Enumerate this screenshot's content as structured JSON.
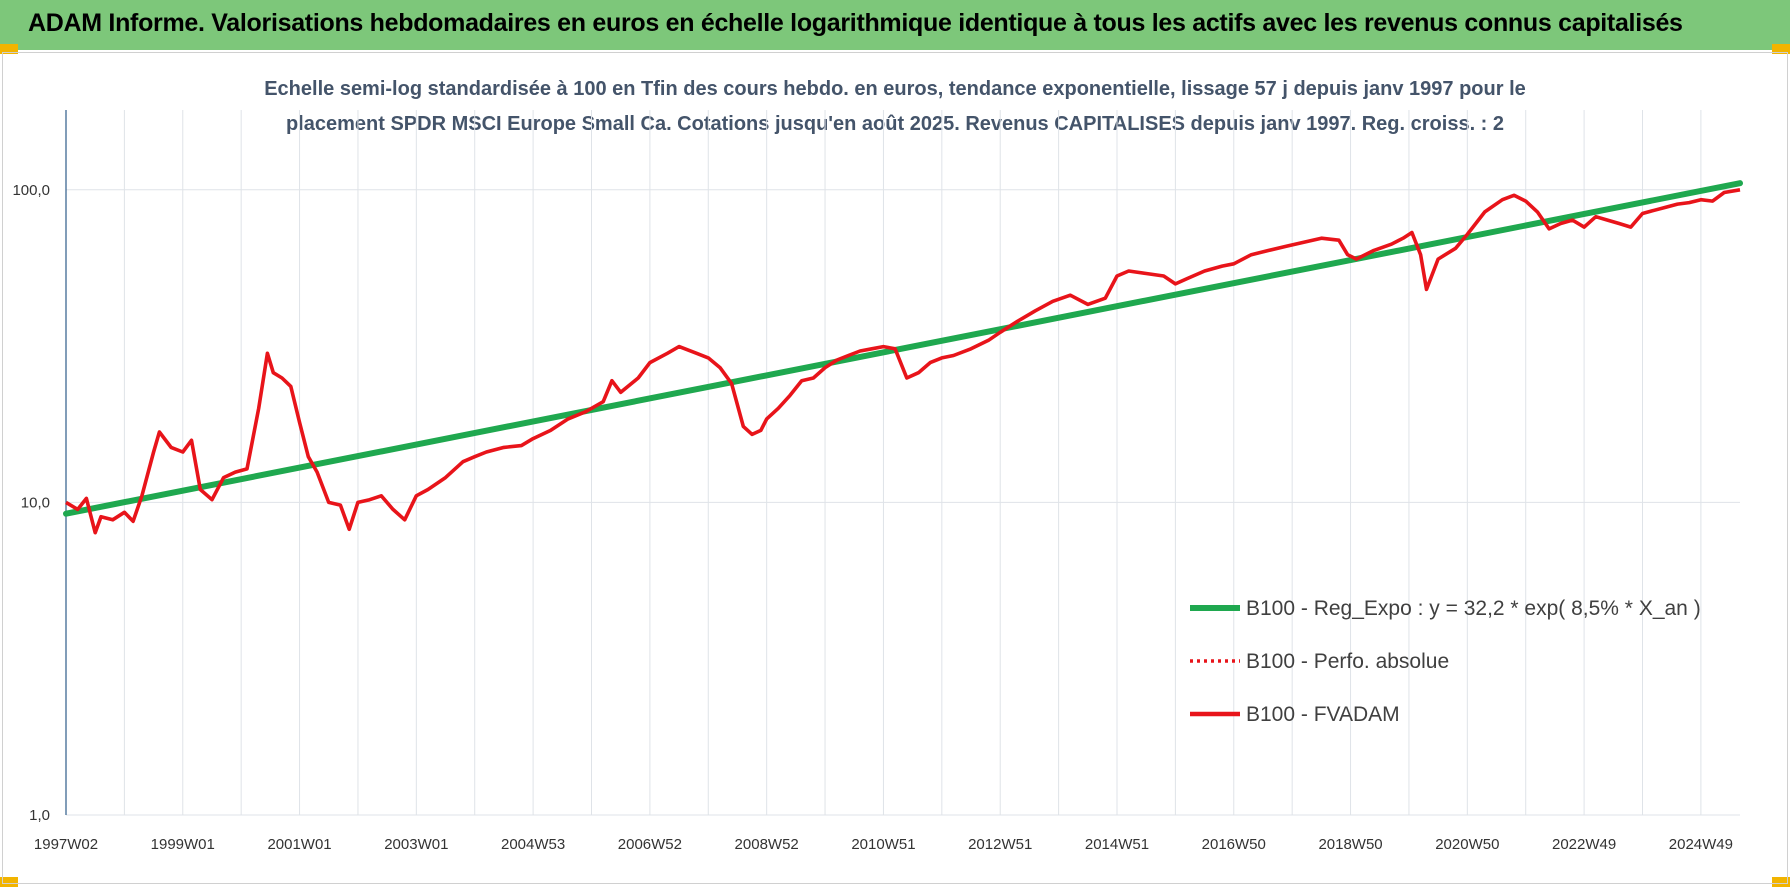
{
  "header": {
    "title": "ADAM Informe. Valorisations hebdomadaires en euros en échelle logarithmique identique à tous les actifs avec les revenus connus capitalisés"
  },
  "colors": {
    "banner": "#7dc77a",
    "corner": "#f2b400",
    "regression": "#1fa84f",
    "series_red": "#e8141a",
    "subtitle": "#44546a"
  },
  "chart_data": {
    "type": "line",
    "title_line1": "Echelle semi-log standardisée à 100 en Tfin des cours hebdo. en euros, tendance exponentielle, lissage 57 j depuis janv 1997 pour le",
    "title_line2": "placement SPDR MSCI Europe Small Ca. Cotations jusqu'en août 2025. Revenus CAPITALISES depuis janv 1997. Reg. croiss. : 2",
    "y_scale": "log",
    "ylim": [
      1,
      180
    ],
    "xlim": [
      1997.0,
      2025.67
    ],
    "grid": true,
    "legend_position": "bottom-right",
    "y_ticks": [
      {
        "value": 1,
        "label": "1,0"
      },
      {
        "value": 10,
        "label": "10,0"
      },
      {
        "value": 100,
        "label": "100,0"
      }
    ],
    "x_ticks": [
      {
        "value": 1997.0,
        "label": "1997W02"
      },
      {
        "value": 1999.0,
        "label": "1999W01"
      },
      {
        "value": 2001.0,
        "label": "2001W01"
      },
      {
        "value": 2003.0,
        "label": "2003W01"
      },
      {
        "value": 2005.0,
        "label": "2004W53"
      },
      {
        "value": 2007.0,
        "label": "2006W52"
      },
      {
        "value": 2009.0,
        "label": "2008W52"
      },
      {
        "value": 2011.0,
        "label": "2010W51"
      },
      {
        "value": 2013.0,
        "label": "2012W51"
      },
      {
        "value": 2015.0,
        "label": "2014W51"
      },
      {
        "value": 2017.0,
        "label": "2016W50"
      },
      {
        "value": 2019.0,
        "label": "2018W50"
      },
      {
        "value": 2021.0,
        "label": "2020W50"
      },
      {
        "value": 2023.0,
        "label": "2022W49"
      },
      {
        "value": 2025.0,
        "label": "2024W49"
      }
    ],
    "series": [
      {
        "name": "B100 - Reg_Expo : y = 32,2 * exp( 8,5% *  X_an )",
        "style": "solid-thick",
        "x": [
          1997.0,
          2025.67
        ],
        "y": [
          9.2,
          105
        ]
      },
      {
        "name": "B100 - Perfo. absolue",
        "style": "dotted",
        "x": [],
        "y": []
      },
      {
        "name": "B100 - FVADAM",
        "style": "solid",
        "x": [
          1997.0,
          1997.2,
          1997.35,
          1997.5,
          1997.6,
          1997.8,
          1998.0,
          1998.15,
          1998.3,
          1998.5,
          1998.6,
          1998.8,
          1999.0,
          1999.15,
          1999.3,
          1999.5,
          1999.7,
          1999.9,
          2000.1,
          2000.3,
          2000.45,
          2000.55,
          2000.7,
          2000.85,
          2001.0,
          2001.15,
          2001.3,
          2001.5,
          2001.7,
          2001.85,
          2002.0,
          2002.2,
          2002.4,
          2002.6,
          2002.8,
          2003.0,
          2003.2,
          2003.5,
          2003.8,
          2004.0,
          2004.2,
          2004.5,
          2004.8,
          2005.0,
          2005.3,
          2005.6,
          2005.9,
          2006.2,
          2006.35,
          2006.5,
          2006.8,
          2007.0,
          2007.3,
          2007.5,
          2007.8,
          2008.0,
          2008.2,
          2008.4,
          2008.6,
          2008.75,
          2008.9,
          2009.0,
          2009.2,
          2009.4,
          2009.6,
          2009.8,
          2010.0,
          2010.2,
          2010.4,
          2010.6,
          2010.8,
          2011.0,
          2011.2,
          2011.4,
          2011.6,
          2011.8,
          2012.0,
          2012.2,
          2012.5,
          2012.8,
          2013.0,
          2013.3,
          2013.6,
          2013.9,
          2014.2,
          2014.5,
          2014.8,
          2015.0,
          2015.2,
          2015.5,
          2015.8,
          2016.0,
          2016.2,
          2016.5,
          2016.8,
          2017.0,
          2017.3,
          2017.6,
          2017.9,
          2018.2,
          2018.5,
          2018.8,
          2018.95,
          2019.1,
          2019.4,
          2019.7,
          2019.9,
          2020.05,
          2020.2,
          2020.3,
          2020.5,
          2020.8,
          2021.0,
          2021.3,
          2021.6,
          2021.8,
          2022.0,
          2022.2,
          2022.4,
          2022.6,
          2022.8,
          2023.0,
          2023.2,
          2023.4,
          2023.6,
          2023.8,
          2024.0,
          2024.2,
          2024.4,
          2024.6,
          2024.8,
          2025.0,
          2025.2,
          2025.4,
          2025.67
        ],
        "y": [
          10.0,
          9.5,
          10.3,
          8.0,
          9.0,
          8.8,
          9.3,
          8.7,
          10.5,
          14.5,
          16.8,
          15.0,
          14.5,
          15.8,
          11.0,
          10.2,
          12.0,
          12.5,
          12.8,
          20.0,
          30.0,
          26.0,
          25.0,
          23.5,
          18.0,
          14.0,
          12.5,
          10.0,
          9.8,
          8.2,
          10.0,
          10.2,
          10.5,
          9.5,
          8.8,
          10.5,
          11.0,
          12.0,
          13.5,
          14.0,
          14.5,
          15.0,
          15.2,
          16.0,
          17.0,
          18.5,
          19.5,
          21.0,
          24.5,
          22.5,
          25.0,
          28.0,
          30.0,
          31.5,
          30.0,
          29.0,
          27.0,
          24.0,
          17.5,
          16.5,
          17.0,
          18.5,
          20.0,
          22.0,
          24.5,
          25.0,
          27.0,
          28.5,
          29.5,
          30.5,
          31.0,
          31.5,
          31.0,
          25.0,
          26.0,
          28.0,
          29.0,
          29.5,
          31.0,
          33.0,
          35.0,
          38.0,
          41.0,
          44.0,
          46.0,
          43.0,
          45.0,
          53.0,
          55.0,
          54.0,
          53.0,
          50.0,
          52.0,
          55.0,
          57.0,
          58.0,
          62.0,
          64.0,
          66.0,
          68.0,
          70.0,
          69.0,
          62.0,
          60.0,
          64.0,
          67.0,
          70.0,
          73.0,
          62.0,
          48.0,
          60.0,
          65.0,
          72.0,
          85.0,
          93.0,
          96.0,
          92.0,
          85.0,
          75.0,
          78.0,
          80.0,
          76.0,
          82.0,
          80.0,
          78.0,
          76.0,
          84.0,
          86.0,
          88.0,
          90.0,
          91.0,
          93.0,
          92.0,
          98.0,
          100.0
        ]
      }
    ]
  }
}
